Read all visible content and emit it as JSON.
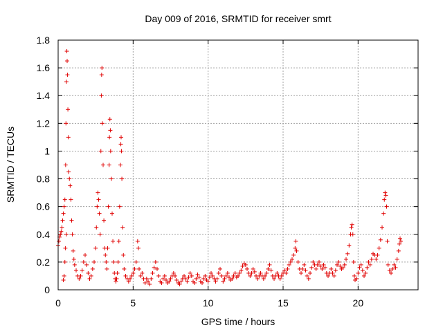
{
  "chart_data": {
    "type": "scatter",
    "title": "Day 009 of 2016, SRMTID for receiver smrt",
    "xlabel": "GPS time / hours",
    "ylabel": "SRMTID / TECUs",
    "xlim": [
      0,
      24
    ],
    "ylim": [
      0,
      1.8
    ],
    "xticks": [
      0,
      5,
      10,
      15,
      20
    ],
    "xtick_labels": [
      "0",
      "5",
      "10",
      "15",
      "20"
    ],
    "yticks": [
      0,
      0.2,
      0.4,
      0.6,
      0.8,
      1.0,
      1.2,
      1.4,
      1.6,
      1.8
    ],
    "ytick_labels": [
      "0",
      "0.2",
      "0.4",
      "0.6",
      "0.8",
      "1",
      "1.2",
      "1.4",
      "1.6",
      "1.8"
    ],
    "grid": true,
    "marker": "plus",
    "series": [
      {
        "color": "#e00000",
        "points": [
          [
            0.0,
            0.32
          ],
          [
            0.05,
            0.35
          ],
          [
            0.1,
            0.38
          ],
          [
            0.15,
            0.4
          ],
          [
            0.2,
            0.42
          ],
          [
            0.25,
            0.45
          ],
          [
            0.3,
            0.5
          ],
          [
            0.35,
            0.55
          ],
          [
            0.4,
            0.6
          ],
          [
            0.45,
            0.65
          ],
          [
            0.5,
            0.9
          ],
          [
            0.52,
            1.2
          ],
          [
            0.55,
            1.5
          ],
          [
            0.58,
            1.72
          ],
          [
            0.6,
            1.65
          ],
          [
            0.62,
            1.55
          ],
          [
            0.65,
            1.3
          ],
          [
            0.68,
            1.1
          ],
          [
            0.7,
            0.85
          ],
          [
            0.75,
            0.8
          ],
          [
            0.8,
            0.75
          ],
          [
            0.85,
            0.65
          ],
          [
            0.9,
            0.5
          ],
          [
            0.95,
            0.4
          ],
          [
            1.0,
            0.28
          ],
          [
            1.05,
            0.22
          ],
          [
            1.1,
            0.18
          ],
          [
            1.2,
            0.14
          ],
          [
            1.3,
            0.1
          ],
          [
            1.4,
            0.08
          ],
          [
            0.35,
            0.07
          ],
          [
            0.4,
            0.1
          ],
          [
            0.45,
            0.2
          ],
          [
            0.48,
            0.3
          ],
          [
            0.55,
            0.4
          ],
          [
            1.5,
            0.1
          ],
          [
            1.6,
            0.14
          ],
          [
            1.7,
            0.2
          ],
          [
            1.8,
            0.25
          ],
          [
            1.9,
            0.18
          ],
          [
            2.0,
            0.12
          ],
          [
            2.1,
            0.08
          ],
          [
            2.2,
            0.1
          ],
          [
            2.3,
            0.15
          ],
          [
            2.4,
            0.2
          ],
          [
            2.5,
            0.3
          ],
          [
            2.55,
            0.45
          ],
          [
            2.6,
            0.6
          ],
          [
            2.65,
            0.7
          ],
          [
            2.7,
            0.65
          ],
          [
            2.75,
            0.55
          ],
          [
            2.8,
            0.4
          ],
          [
            2.85,
            1.0
          ],
          [
            2.88,
            1.4
          ],
          [
            2.9,
            1.55
          ],
          [
            2.92,
            1.6
          ],
          [
            2.95,
            1.2
          ],
          [
            3.0,
            0.9
          ],
          [
            3.05,
            0.5
          ],
          [
            3.1,
            0.3
          ],
          [
            3.15,
            0.25
          ],
          [
            3.2,
            0.2
          ],
          [
            3.25,
            0.15
          ],
          [
            3.3,
            0.3
          ],
          [
            3.35,
            0.6
          ],
          [
            3.4,
            0.9
          ],
          [
            3.42,
            1.1
          ],
          [
            3.45,
            1.23
          ],
          [
            3.48,
            1.15
          ],
          [
            3.5,
            1.0
          ],
          [
            3.55,
            0.8
          ],
          [
            3.6,
            0.55
          ],
          [
            3.65,
            0.35
          ],
          [
            3.7,
            0.2
          ],
          [
            3.75,
            0.12
          ],
          [
            3.8,
            0.08
          ],
          [
            3.85,
            0.06
          ],
          [
            3.9,
            0.08
          ],
          [
            3.95,
            0.12
          ],
          [
            4.0,
            0.2
          ],
          [
            4.05,
            0.35
          ],
          [
            4.1,
            0.6
          ],
          [
            4.15,
            0.9
          ],
          [
            4.18,
            1.05
          ],
          [
            4.2,
            1.1
          ],
          [
            4.22,
            1.0
          ],
          [
            4.25,
            0.8
          ],
          [
            4.3,
            0.45
          ],
          [
            4.35,
            0.25
          ],
          [
            4.4,
            0.15
          ],
          [
            4.5,
            0.1
          ],
          [
            4.6,
            0.08
          ],
          [
            4.7,
            0.06
          ],
          [
            4.8,
            0.08
          ],
          [
            4.9,
            0.1
          ],
          [
            5.0,
            0.12
          ],
          [
            5.1,
            0.15
          ],
          [
            5.2,
            0.2
          ],
          [
            5.3,
            0.35
          ],
          [
            5.35,
            0.3
          ],
          [
            5.4,
            0.15
          ],
          [
            5.5,
            0.1
          ],
          [
            5.6,
            0.12
          ],
          [
            5.7,
            0.08
          ],
          [
            5.8,
            0.05
          ],
          [
            5.9,
            0.08
          ],
          [
            6.0,
            0.06
          ],
          [
            6.1,
            0.04
          ],
          [
            6.2,
            0.08
          ],
          [
            6.3,
            0.12
          ],
          [
            6.4,
            0.16
          ],
          [
            6.5,
            0.2
          ],
          [
            6.6,
            0.15
          ],
          [
            6.7,
            0.1
          ],
          [
            6.8,
            0.06
          ],
          [
            6.9,
            0.05
          ],
          [
            7.0,
            0.08
          ],
          [
            7.1,
            0.1
          ],
          [
            7.2,
            0.07
          ],
          [
            7.3,
            0.05
          ],
          [
            7.4,
            0.06
          ],
          [
            7.5,
            0.08
          ],
          [
            7.6,
            0.1
          ],
          [
            7.7,
            0.12
          ],
          [
            7.8,
            0.1
          ],
          [
            7.9,
            0.07
          ],
          [
            8.0,
            0.05
          ],
          [
            8.1,
            0.04
          ],
          [
            8.2,
            0.06
          ],
          [
            8.3,
            0.08
          ],
          [
            8.4,
            0.1
          ],
          [
            8.5,
            0.08
          ],
          [
            8.6,
            0.06
          ],
          [
            8.7,
            0.09
          ],
          [
            8.8,
            0.12
          ],
          [
            8.9,
            0.1
          ],
          [
            9.0,
            0.06
          ],
          [
            9.1,
            0.05
          ],
          [
            9.2,
            0.08
          ],
          [
            9.3,
            0.11
          ],
          [
            9.4,
            0.09
          ],
          [
            9.5,
            0.06
          ],
          [
            9.6,
            0.05
          ],
          [
            9.7,
            0.08
          ],
          [
            9.8,
            0.1
          ],
          [
            9.9,
            0.07
          ],
          [
            10.0,
            0.06
          ],
          [
            10.1,
            0.09
          ],
          [
            10.2,
            0.12
          ],
          [
            10.3,
            0.1
          ],
          [
            10.4,
            0.08
          ],
          [
            10.5,
            0.06
          ],
          [
            10.6,
            0.08
          ],
          [
            10.7,
            0.12
          ],
          [
            10.8,
            0.15
          ],
          [
            10.9,
            0.1
          ],
          [
            11.0,
            0.06
          ],
          [
            11.1,
            0.08
          ],
          [
            11.2,
            0.1
          ],
          [
            11.3,
            0.12
          ],
          [
            11.4,
            0.09
          ],
          [
            11.5,
            0.07
          ],
          [
            11.6,
            0.08
          ],
          [
            11.7,
            0.1
          ],
          [
            11.8,
            0.12
          ],
          [
            11.9,
            0.09
          ],
          [
            12.0,
            0.1
          ],
          [
            12.1,
            0.12
          ],
          [
            12.2,
            0.14
          ],
          [
            12.3,
            0.17
          ],
          [
            12.4,
            0.19
          ],
          [
            12.5,
            0.18
          ],
          [
            12.6,
            0.15
          ],
          [
            12.7,
            0.12
          ],
          [
            12.8,
            0.1
          ],
          [
            12.9,
            0.12
          ],
          [
            13.0,
            0.15
          ],
          [
            13.1,
            0.13
          ],
          [
            13.2,
            0.1
          ],
          [
            13.3,
            0.08
          ],
          [
            13.4,
            0.1
          ],
          [
            13.5,
            0.12
          ],
          [
            13.6,
            0.1
          ],
          [
            13.7,
            0.08
          ],
          [
            13.8,
            0.1
          ],
          [
            13.9,
            0.12
          ],
          [
            14.0,
            0.15
          ],
          [
            14.1,
            0.18
          ],
          [
            14.2,
            0.14
          ],
          [
            14.3,
            0.1
          ],
          [
            14.4,
            0.08
          ],
          [
            14.5,
            0.1
          ],
          [
            14.6,
            0.12
          ],
          [
            14.7,
            0.1
          ],
          [
            14.8,
            0.08
          ],
          [
            14.9,
            0.1
          ],
          [
            15.0,
            0.12
          ],
          [
            15.1,
            0.14
          ],
          [
            15.2,
            0.12
          ],
          [
            15.3,
            0.15
          ],
          [
            15.4,
            0.18
          ],
          [
            15.5,
            0.2
          ],
          [
            15.6,
            0.22
          ],
          [
            15.7,
            0.25
          ],
          [
            15.8,
            0.3
          ],
          [
            15.85,
            0.35
          ],
          [
            15.9,
            0.28
          ],
          [
            16.0,
            0.2
          ],
          [
            16.1,
            0.15
          ],
          [
            16.2,
            0.12
          ],
          [
            16.3,
            0.15
          ],
          [
            16.4,
            0.18
          ],
          [
            16.5,
            0.14
          ],
          [
            16.6,
            0.1
          ],
          [
            16.7,
            0.08
          ],
          [
            16.8,
            0.12
          ],
          [
            16.9,
            0.16
          ],
          [
            17.0,
            0.2
          ],
          [
            17.1,
            0.18
          ],
          [
            17.2,
            0.15
          ],
          [
            17.3,
            0.18
          ],
          [
            17.4,
            0.2
          ],
          [
            17.5,
            0.17
          ],
          [
            17.6,
            0.15
          ],
          [
            17.7,
            0.18
          ],
          [
            17.8,
            0.16
          ],
          [
            17.9,
            0.12
          ],
          [
            18.0,
            0.1
          ],
          [
            18.1,
            0.12
          ],
          [
            18.2,
            0.15
          ],
          [
            18.3,
            0.12
          ],
          [
            18.4,
            0.1
          ],
          [
            18.5,
            0.14
          ],
          [
            18.6,
            0.18
          ],
          [
            18.7,
            0.2
          ],
          [
            18.8,
            0.17
          ],
          [
            18.9,
            0.15
          ],
          [
            19.0,
            0.16
          ],
          [
            19.1,
            0.18
          ],
          [
            19.2,
            0.22
          ],
          [
            19.3,
            0.26
          ],
          [
            19.4,
            0.32
          ],
          [
            19.5,
            0.4
          ],
          [
            19.55,
            0.45
          ],
          [
            19.6,
            0.47
          ],
          [
            19.65,
            0.4
          ],
          [
            19.7,
            0.2
          ],
          [
            19.75,
            0.1
          ],
          [
            19.8,
            0.07
          ],
          [
            19.9,
            0.08
          ],
          [
            20.0,
            0.12
          ],
          [
            20.1,
            0.16
          ],
          [
            20.2,
            0.18
          ],
          [
            20.3,
            0.14
          ],
          [
            20.4,
            0.1
          ],
          [
            20.5,
            0.12
          ],
          [
            20.6,
            0.16
          ],
          [
            20.7,
            0.2
          ],
          [
            20.8,
            0.18
          ],
          [
            20.9,
            0.22
          ],
          [
            21.0,
            0.26
          ],
          [
            21.1,
            0.25
          ],
          [
            21.2,
            0.22
          ],
          [
            21.3,
            0.25
          ],
          [
            21.4,
            0.3
          ],
          [
            21.5,
            0.36
          ],
          [
            21.6,
            0.45
          ],
          [
            21.7,
            0.55
          ],
          [
            21.75,
            0.65
          ],
          [
            21.8,
            0.7
          ],
          [
            21.85,
            0.68
          ],
          [
            21.9,
            0.6
          ],
          [
            21.95,
            0.35
          ],
          [
            22.0,
            0.18
          ],
          [
            22.1,
            0.14
          ],
          [
            22.2,
            0.12
          ],
          [
            22.3,
            0.15
          ],
          [
            22.4,
            0.18
          ],
          [
            22.5,
            0.16
          ],
          [
            22.6,
            0.22
          ],
          [
            22.7,
            0.28
          ],
          [
            22.75,
            0.33
          ],
          [
            22.8,
            0.37
          ],
          [
            22.85,
            0.35
          ]
        ]
      }
    ]
  }
}
